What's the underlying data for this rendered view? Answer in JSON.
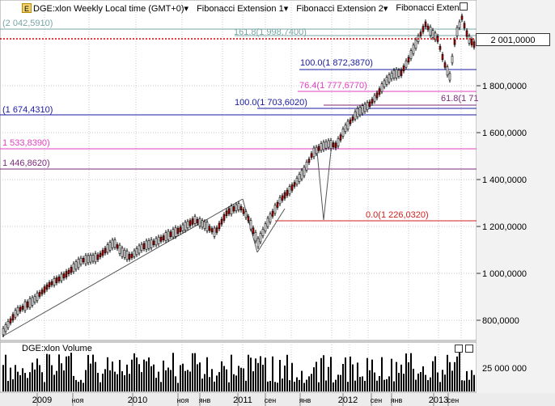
{
  "header": {
    "icon_name": "chart-app-icon",
    "title": "DGE:xlon Weekly Local time (GMT+0)",
    "dropdown_caret": "▾",
    "studies": [
      "Fibonacci Extension 1",
      "Fibonacci Extension 2",
      "Fibonacci Extensi"
    ]
  },
  "price_axis": {
    "ticks": [
      "1 800,0000",
      "1 600,0000",
      "1 400,0000",
      "1 200,0000",
      "1 000,0000",
      "800,0000"
    ],
    "last_price": "2 001,0000"
  },
  "fib_levels": [
    {
      "label": "(2 042,5910)",
      "color": "#7aa6a6"
    },
    {
      "label": "161.8(1 998,7400)",
      "color": "#7aa6a6"
    },
    {
      "label": "100.0(1 872,3870)",
      "color": "#1a1aa0"
    },
    {
      "label": "76.4(1 777,6770)",
      "color": "#e040c0"
    },
    {
      "label": "61.8(1 71",
      "color": "#7a2a7a"
    },
    {
      "label": "100.0(1 703,6020)",
      "color": "#1a1aa0"
    },
    {
      "label": "(1 674,4310)",
      "color": "#1a1aa0"
    },
    {
      "label": "1 533,8390)",
      "color": "#e040c0"
    },
    {
      "label": "1 446,8620)",
      "color": "#7a2a7a"
    },
    {
      "label": "0.0(1 226,0320)",
      "color": "#d02020"
    }
  ],
  "volume_panel": {
    "title": "DGE:xlon Volume",
    "tick": "25 000 000"
  },
  "time_axis": {
    "labels": [
      "2009",
      "ноя",
      "2010",
      "ноя",
      "янв",
      "2011",
      "сен",
      "янв",
      "2012",
      "сен",
      "янв",
      "2013",
      "сен"
    ]
  },
  "colors": {
    "up_candle": "#000000",
    "down_candle": "#b00000",
    "grid": "#c8c8c8",
    "last_price_line": "#d00000"
  }
}
